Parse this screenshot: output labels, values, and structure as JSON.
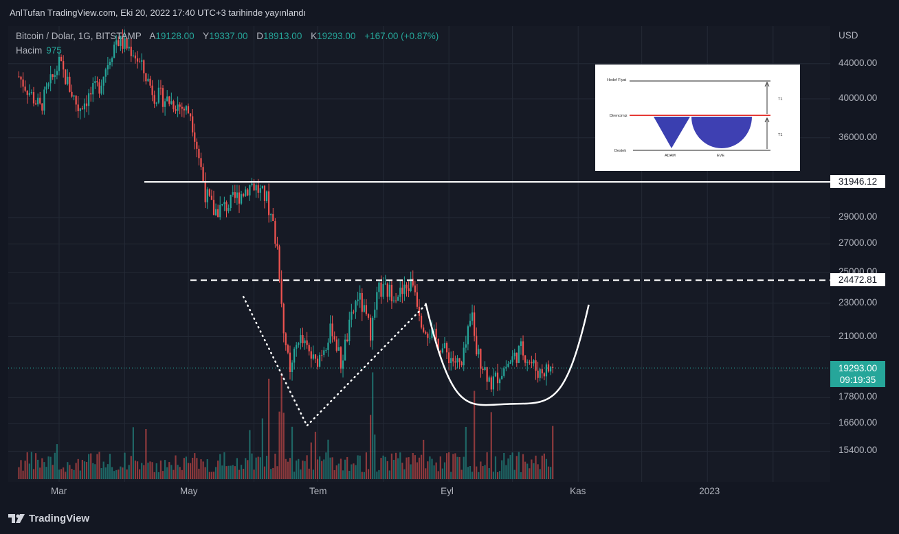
{
  "header": {
    "publisher_line": "AnlTufan TradingView.com, Eki 20, 2022 17:40 UTC+3 tarihinde yayınlandı"
  },
  "legend": {
    "symbol": "Bitcoin / Dolar, 1G, BITSTAMP",
    "open_label": "A",
    "open": "19128.00",
    "high_label": "Y",
    "high": "19337.00",
    "low_label": "D",
    "low": "18913.00",
    "close_label": "K",
    "close": "19293.00",
    "change": "+167.00 (+0.87%)",
    "volume_label": "Hacim",
    "volume": "975"
  },
  "price_axis": {
    "currency": "USD",
    "ticks": [
      "44000.00",
      "40000.00",
      "36000.00",
      "29000.00",
      "27000.00",
      "25000.00",
      "23000.00",
      "21000.00",
      "17800.00",
      "16600.00",
      "15400.00"
    ]
  },
  "time_axis": {
    "labels": [
      "Mar",
      "May",
      "Tem",
      "Eyl",
      "Kas",
      "2023"
    ]
  },
  "badges": {
    "resistance_high": "31946.12",
    "resistance_neck": "24472.81",
    "last_price": "19293.00",
    "countdown": "09:19:35"
  },
  "inset": {
    "target_label": "Hedef Fiyat",
    "resistance_label": "Direncimiz",
    "support_label": "Destek",
    "cup_left_label": "ADAM",
    "cup_right_label": "EVE",
    "t1_top": "T1",
    "t1_bottom": "T1"
  },
  "footer": {
    "brand": "TradingView"
  },
  "colors": {
    "up": "#26a69a",
    "down": "#ef5350",
    "background": "#131722",
    "badge_last": "#26a69a"
  },
  "chart_data": {
    "type": "candlestick",
    "symbol": "Bitcoin / Dolar",
    "timeframe": "1G",
    "exchange": "BITSTAMP",
    "ylim": [
      14600,
      48000
    ],
    "anchors": [
      [
        "2022-02-10",
        42500
      ],
      [
        "2022-02-20",
        39000
      ],
      [
        "2022-03-01",
        44000
      ],
      [
        "2022-03-10",
        39000
      ],
      [
        "2022-03-20",
        41500
      ],
      [
        "2022-03-28",
        47000
      ],
      [
        "2022-04-05",
        45500
      ],
      [
        "2022-04-15",
        40500
      ],
      [
        "2022-04-25",
        39500
      ],
      [
        "2022-05-02",
        38500
      ],
      [
        "2022-05-09",
        31000
      ],
      [
        "2022-05-13",
        29500
      ],
      [
        "2022-05-20",
        30000
      ],
      [
        "2022-05-31",
        31800
      ],
      [
        "2022-06-07",
        30500
      ],
      [
        "2022-06-12",
        26800
      ],
      [
        "2022-06-15",
        21500
      ],
      [
        "2022-06-18",
        18800
      ],
      [
        "2022-06-22",
        21000
      ],
      [
        "2022-06-30",
        19500
      ],
      [
        "2022-07-08",
        21500
      ],
      [
        "2022-07-12",
        19500
      ],
      [
        "2022-07-20",
        23500
      ],
      [
        "2022-07-26",
        21300
      ],
      [
        "2022-07-30",
        23800
      ],
      [
        "2022-08-10",
        23600
      ],
      [
        "2022-08-15",
        24400
      ],
      [
        "2022-08-19",
        22000
      ],
      [
        "2022-08-22",
        21400
      ],
      [
        "2022-08-31",
        20050
      ],
      [
        "2022-09-07",
        19300
      ],
      [
        "2022-09-12",
        22300
      ],
      [
        "2022-09-14",
        20200
      ],
      [
        "2022-09-21",
        18500
      ],
      [
        "2022-09-28",
        19400
      ],
      [
        "2022-10-05",
        20300
      ],
      [
        "2022-10-13",
        19100
      ],
      [
        "2022-10-20",
        19293
      ]
    ],
    "horizontal_levels": [
      31946.12,
      24472.81
    ],
    "last_close": 19293.0
  }
}
